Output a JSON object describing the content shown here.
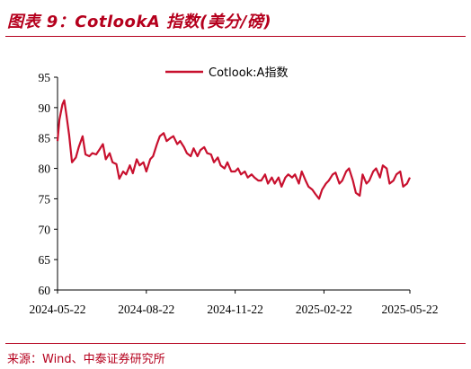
{
  "header": {
    "title": "图表 9：CotlookA 指数(美分/磅)"
  },
  "footer": {
    "source": "来源：Wind、中泰证券研究所"
  },
  "colors": {
    "accent": "#b5001d",
    "series": "#c8102e"
  },
  "chart_data": {
    "type": "line",
    "title": "",
    "xlabel": "",
    "ylabel": "",
    "ylim": [
      60,
      95
    ],
    "yticks": [
      60,
      65,
      70,
      75,
      80,
      85,
      90,
      95
    ],
    "xticks": [
      "2024-05-22",
      "2024-08-22",
      "2024-11-22",
      "2025-02-22",
      "2025-05-22"
    ],
    "legend": "top-center",
    "grid": false,
    "series": [
      {
        "name": "Cotlook:A指数",
        "x": [
          "2024-05-22",
          "2024-05-24",
          "2024-05-27",
          "2024-05-29",
          "2024-05-31",
          "2024-06-03",
          "2024-06-06",
          "2024-06-10",
          "2024-06-13",
          "2024-06-17",
          "2024-06-20",
          "2024-06-24",
          "2024-06-27",
          "2024-07-01",
          "2024-07-04",
          "2024-07-08",
          "2024-07-11",
          "2024-07-15",
          "2024-07-18",
          "2024-07-22",
          "2024-07-25",
          "2024-07-29",
          "2024-08-01",
          "2024-08-05",
          "2024-08-08",
          "2024-08-12",
          "2024-08-15",
          "2024-08-19",
          "2024-08-22",
          "2024-08-26",
          "2024-08-29",
          "2024-09-02",
          "2024-09-05",
          "2024-09-09",
          "2024-09-12",
          "2024-09-16",
          "2024-09-19",
          "2024-09-23",
          "2024-09-26",
          "2024-09-30",
          "2024-10-03",
          "2024-10-07",
          "2024-10-10",
          "2024-10-14",
          "2024-10-17",
          "2024-10-21",
          "2024-10-24",
          "2024-10-28",
          "2024-10-31",
          "2024-11-04",
          "2024-11-07",
          "2024-11-11",
          "2024-11-14",
          "2024-11-18",
          "2024-11-22",
          "2024-11-25",
          "2024-11-28",
          "2024-12-02",
          "2024-12-05",
          "2024-12-09",
          "2024-12-12",
          "2024-12-16",
          "2024-12-19",
          "2024-12-23",
          "2024-12-26",
          "2024-12-30",
          "2025-01-02",
          "2025-01-06",
          "2025-01-09",
          "2025-01-13",
          "2025-01-16",
          "2025-01-20",
          "2025-01-23",
          "2025-01-27",
          "2025-01-30",
          "2025-02-03",
          "2025-02-06",
          "2025-02-10",
          "2025-02-13",
          "2025-02-17",
          "2025-02-20",
          "2025-02-24",
          "2025-02-27",
          "2025-03-03",
          "2025-03-06",
          "2025-03-10",
          "2025-03-13",
          "2025-03-17",
          "2025-03-20",
          "2025-03-24",
          "2025-03-27",
          "2025-03-31",
          "2025-04-03",
          "2025-04-07",
          "2025-04-10",
          "2025-04-14",
          "2025-04-17",
          "2025-04-21",
          "2025-04-24",
          "2025-04-28",
          "2025-05-01",
          "2025-05-05",
          "2025-05-08",
          "2025-05-12",
          "2025-05-15",
          "2025-05-19",
          "2025-05-22"
        ],
        "values": [
          84.5,
          88.0,
          90.5,
          91.2,
          89.0,
          85.5,
          81.0,
          81.8,
          83.5,
          85.3,
          82.3,
          82.0,
          82.5,
          82.3,
          83.0,
          84.0,
          81.5,
          82.5,
          81.0,
          80.7,
          78.3,
          79.5,
          79.0,
          80.5,
          79.2,
          81.5,
          80.5,
          81.0,
          79.5,
          81.5,
          82.0,
          84.0,
          85.3,
          85.8,
          84.5,
          85.0,
          85.3,
          84.0,
          84.5,
          83.5,
          82.5,
          82.0,
          83.3,
          82.0,
          83.0,
          83.5,
          82.5,
          82.3,
          81.0,
          81.8,
          80.5,
          80.0,
          81.0,
          79.5,
          79.5,
          80.0,
          79.0,
          79.5,
          78.5,
          79.0,
          78.5,
          78.0,
          78.0,
          79.0,
          77.5,
          78.5,
          77.5,
          78.5,
          77.0,
          78.5,
          79.0,
          78.5,
          79.0,
          77.5,
          79.5,
          78.0,
          77.0,
          76.5,
          75.8,
          75.0,
          76.5,
          77.5,
          78.0,
          79.0,
          79.3,
          77.5,
          78.0,
          79.5,
          80.0,
          78.0,
          76.0,
          75.5,
          79.0,
          77.5,
          78.0,
          79.5,
          80.0,
          78.5,
          80.5,
          80.0,
          77.5,
          78.0,
          79.0,
          79.5,
          77.0,
          77.5,
          78.5
        ]
      }
    ]
  }
}
